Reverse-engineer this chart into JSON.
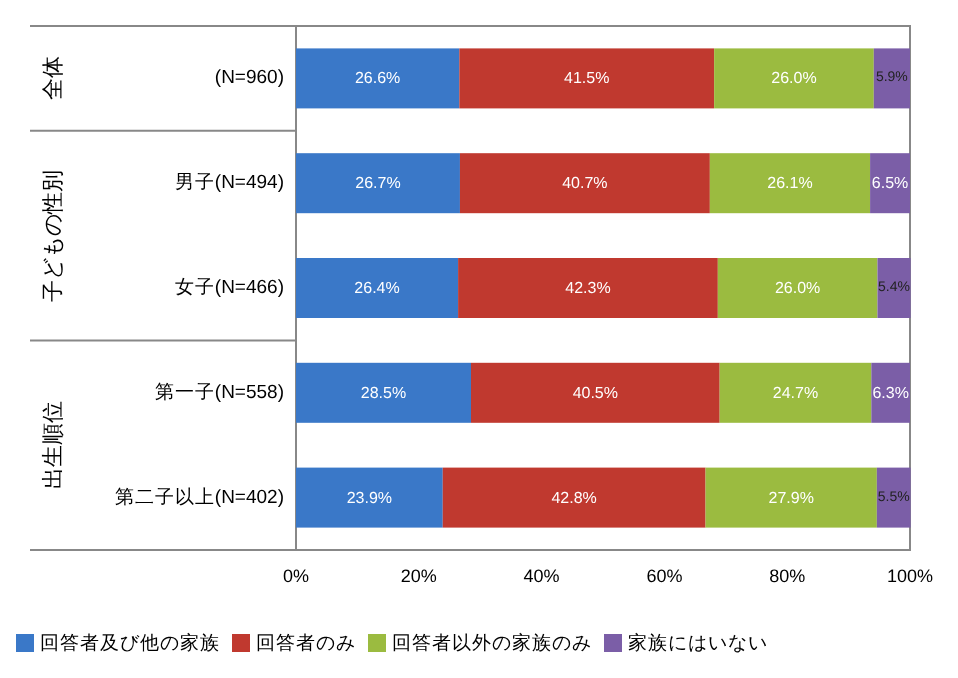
{
  "chart_data": {
    "type": "bar",
    "orientation": "horizontal",
    "stacked": true,
    "categories": [
      "(N=960)",
      "男子(N=494)",
      "女子(N=466)",
      "第一子(N=558)",
      "第二子以上(N=402)"
    ],
    "series": [
      {
        "name": "回答者及び他の家族",
        "color": "#3a78c8",
        "values": [
          26.6,
          26.7,
          26.4,
          28.5,
          23.9
        ],
        "value_labels": [
          "26.6%",
          "26.7%",
          "26.4%",
          "28.5%",
          "23.9%"
        ]
      },
      {
        "name": "回答者のみ",
        "color": "#c0392f",
        "values": [
          41.5,
          40.7,
          42.3,
          40.5,
          42.8
        ],
        "value_labels": [
          "41.5%",
          "40.7%",
          "42.3%",
          "40.5%",
          "42.8%"
        ]
      },
      {
        "name": "回答者以外の家族のみ",
        "color": "#9bbb40",
        "values": [
          26.0,
          26.1,
          26.0,
          24.7,
          27.9
        ],
        "value_labels": [
          "26.0%",
          "26.1%",
          "26.0%",
          "24.7%",
          "27.9%"
        ]
      },
      {
        "name": "家族にはいない",
        "color": "#7b5ea7",
        "values": [
          5.9,
          6.5,
          5.4,
          6.3,
          5.5
        ],
        "value_labels": [
          "5.9%",
          "6.5%",
          "5.4%",
          "6.3%",
          "5.5%"
        ]
      }
    ],
    "xlim": [
      0,
      100
    ],
    "xticks": [
      {
        "value": 0,
        "label": "0%"
      },
      {
        "value": 20,
        "label": "20%"
      },
      {
        "value": 40,
        "label": "40%"
      },
      {
        "value": 60,
        "label": "60%"
      },
      {
        "value": 80,
        "label": "80%"
      },
      {
        "value": 100,
        "label": "100%"
      }
    ],
    "annotations": [
      "全体",
      "子どもの性別",
      "出生順位"
    ],
    "legend": "bottom"
  }
}
